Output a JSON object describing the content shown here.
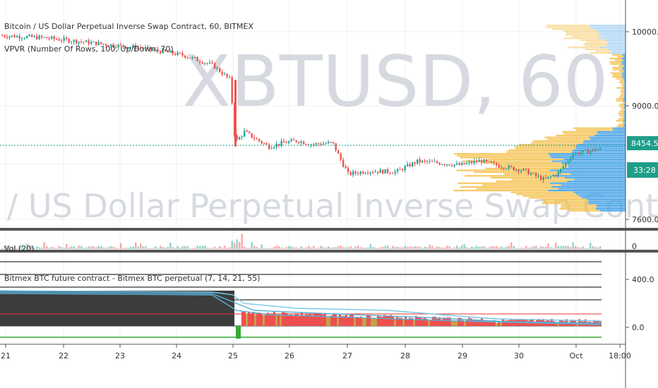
{
  "app": {
    "symbol_title": "Bitcoin / US Dollar Perpetual Inverse Swap Contract, 60, BITMEX",
    "indicator_vpvr": "VPVR (Number Of Rows, 100, Up/Down, 70)",
    "volume_label": "Vol (20)",
    "lower_indicator": "Bitmex BTC future contract - Bitmex BTC perpetual (7, 14, 21, 55)",
    "watermark_ticker": "XBTUSD, 60",
    "watermark_name": "Bitcoin / US Dollar Perpetual Inverse Swap Contract"
  },
  "price_axis": {
    "ticks": [
      "10000.0",
      "9000.0",
      "7600.0"
    ],
    "current_price": "8454.5",
    "countdown": "33:28",
    "colors": {
      "current": "#1e9e8a",
      "countdown": "#1e9e8a"
    }
  },
  "volume_axis": {
    "ticks": [
      "0"
    ]
  },
  "indicator_axis": {
    "ticks": [
      "400.0",
      "0.0"
    ]
  },
  "time_axis": {
    "ticks": [
      "21",
      "22",
      "23",
      "24",
      "25",
      "26",
      "27",
      "28",
      "29",
      "30",
      "Oct",
      "18:00"
    ]
  },
  "colors": {
    "up": "#26a69a",
    "down": "#ef5350",
    "vpvr_up": "#4da6e8",
    "vpvr_down": "#f5c04a",
    "price_line": "#1e9e8a",
    "dark_fill": "#3c3c3c",
    "red_fill": "#ee4f4f",
    "light_blue": "#7ac7e8"
  }
}
